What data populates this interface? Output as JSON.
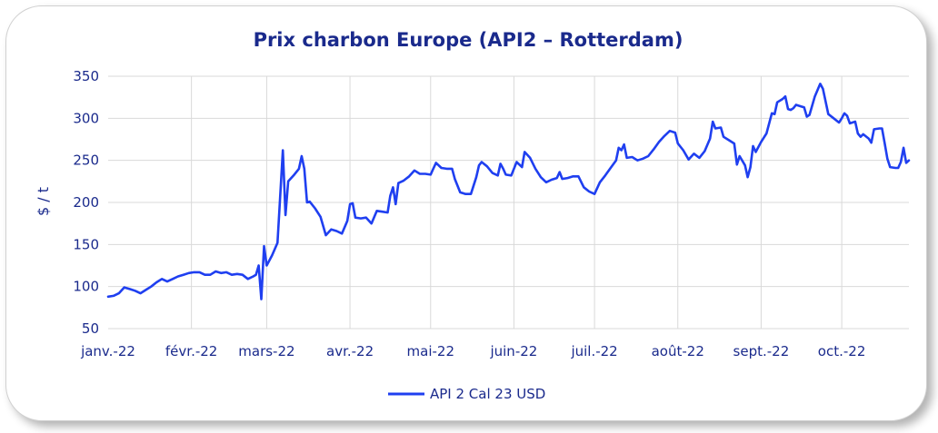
{
  "chart_data": {
    "type": "line",
    "title": "Prix charbon Europe (API2 – Rotterdam)",
    "xlabel": "",
    "ylabel": "$ / t",
    "ylim": [
      50,
      350
    ],
    "yticks": [
      50,
      100,
      150,
      200,
      250,
      300,
      350
    ],
    "xlim": [
      "2022-01-01",
      "2022-10-26"
    ],
    "xticks": [
      {
        "label": "janv.-22",
        "date": "2022-01-01"
      },
      {
        "label": "févr.-22",
        "date": "2022-02-01"
      },
      {
        "label": "mars-22",
        "date": "2022-03-01"
      },
      {
        "label": "avr.-22",
        "date": "2022-04-01"
      },
      {
        "label": "mai-22",
        "date": "2022-05-01"
      },
      {
        "label": "juin-22",
        "date": "2022-06-01"
      },
      {
        "label": "juil.-22",
        "date": "2022-07-01"
      },
      {
        "label": "août-22",
        "date": "2022-08-01"
      },
      {
        "label": "sept.-22",
        "date": "2022-09-01"
      },
      {
        "label": "oct.-22",
        "date": "2022-10-01"
      }
    ],
    "grid": true,
    "legend_position": "bottom",
    "series": [
      {
        "name": "API 2 Cal 23 USD",
        "color": "#1f3ff0",
        "points": [
          [
            "2022-01-01",
            88
          ],
          [
            "2022-01-03",
            89
          ],
          [
            "2022-01-05",
            92
          ],
          [
            "2022-01-07",
            99
          ],
          [
            "2022-01-09",
            97
          ],
          [
            "2022-01-11",
            95
          ],
          [
            "2022-01-13",
            92
          ],
          [
            "2022-01-15",
            96
          ],
          [
            "2022-01-17",
            100
          ],
          [
            "2022-01-19",
            105
          ],
          [
            "2022-01-21",
            109
          ],
          [
            "2022-01-23",
            106
          ],
          [
            "2022-01-25",
            109
          ],
          [
            "2022-01-27",
            112
          ],
          [
            "2022-01-29",
            114
          ],
          [
            "2022-01-31",
            116
          ],
          [
            "2022-02-02",
            117
          ],
          [
            "2022-02-04",
            117
          ],
          [
            "2022-02-06",
            114
          ],
          [
            "2022-02-08",
            114
          ],
          [
            "2022-02-10",
            118
          ],
          [
            "2022-02-12",
            116
          ],
          [
            "2022-02-14",
            117
          ],
          [
            "2022-02-16",
            114
          ],
          [
            "2022-02-18",
            115
          ],
          [
            "2022-02-20",
            114
          ],
          [
            "2022-02-22",
            109
          ],
          [
            "2022-02-24",
            112
          ],
          [
            "2022-02-25",
            114
          ],
          [
            "2022-02-26",
            125
          ],
          [
            "2022-02-27",
            85
          ],
          [
            "2022-02-28",
            148
          ],
          [
            "2022-03-01",
            125
          ],
          [
            "2022-03-03",
            137
          ],
          [
            "2022-03-05",
            152
          ],
          [
            "2022-03-07",
            262
          ],
          [
            "2022-03-08",
            185
          ],
          [
            "2022-03-09",
            225
          ],
          [
            "2022-03-11",
            232
          ],
          [
            "2022-03-13",
            240
          ],
          [
            "2022-03-14",
            255
          ],
          [
            "2022-03-15",
            240
          ],
          [
            "2022-03-16",
            200
          ],
          [
            "2022-03-17",
            201
          ],
          [
            "2022-03-19",
            193
          ],
          [
            "2022-03-21",
            183
          ],
          [
            "2022-03-23",
            161
          ],
          [
            "2022-03-25",
            168
          ],
          [
            "2022-03-27",
            166
          ],
          [
            "2022-03-29",
            163
          ],
          [
            "2022-03-31",
            178
          ],
          [
            "2022-04-01",
            198
          ],
          [
            "2022-04-02",
            199
          ],
          [
            "2022-04-03",
            182
          ],
          [
            "2022-04-05",
            181
          ],
          [
            "2022-04-07",
            182
          ],
          [
            "2022-04-09",
            175
          ],
          [
            "2022-04-11",
            190
          ],
          [
            "2022-04-13",
            189
          ],
          [
            "2022-04-15",
            188
          ],
          [
            "2022-04-16",
            208
          ],
          [
            "2022-04-17",
            218
          ],
          [
            "2022-04-18",
            198
          ],
          [
            "2022-04-19",
            223
          ],
          [
            "2022-04-21",
            226
          ],
          [
            "2022-04-23",
            231
          ],
          [
            "2022-04-25",
            238
          ],
          [
            "2022-04-27",
            234
          ],
          [
            "2022-04-29",
            234
          ],
          [
            "2022-05-01",
            233
          ],
          [
            "2022-05-02",
            240
          ],
          [
            "2022-05-03",
            247
          ],
          [
            "2022-05-05",
            241
          ],
          [
            "2022-05-07",
            240
          ],
          [
            "2022-05-09",
            240
          ],
          [
            "2022-05-10",
            228
          ],
          [
            "2022-05-12",
            212
          ],
          [
            "2022-05-14",
            210
          ],
          [
            "2022-05-16",
            210
          ],
          [
            "2022-05-18",
            230
          ],
          [
            "2022-05-19",
            244
          ],
          [
            "2022-05-20",
            248
          ],
          [
            "2022-05-22",
            243
          ],
          [
            "2022-05-24",
            235
          ],
          [
            "2022-05-26",
            232
          ],
          [
            "2022-05-27",
            246
          ],
          [
            "2022-05-28",
            240
          ],
          [
            "2022-05-29",
            233
          ],
          [
            "2022-05-31",
            232
          ],
          [
            "2022-06-02",
            248
          ],
          [
            "2022-06-04",
            242
          ],
          [
            "2022-06-05",
            260
          ],
          [
            "2022-06-07",
            253
          ],
          [
            "2022-06-09",
            240
          ],
          [
            "2022-06-11",
            230
          ],
          [
            "2022-06-13",
            224
          ],
          [
            "2022-06-15",
            227
          ],
          [
            "2022-06-17",
            229
          ],
          [
            "2022-06-18",
            236
          ],
          [
            "2022-06-19",
            228
          ],
          [
            "2022-06-21",
            229
          ],
          [
            "2022-06-23",
            231
          ],
          [
            "2022-06-25",
            231
          ],
          [
            "2022-06-27",
            218
          ],
          [
            "2022-06-29",
            213
          ],
          [
            "2022-07-01",
            210
          ],
          [
            "2022-07-03",
            224
          ],
          [
            "2022-07-05",
            232
          ],
          [
            "2022-07-07",
            241
          ],
          [
            "2022-07-09",
            250
          ],
          [
            "2022-07-10",
            265
          ],
          [
            "2022-07-11",
            262
          ],
          [
            "2022-07-12",
            269
          ],
          [
            "2022-07-13",
            253
          ],
          [
            "2022-07-15",
            254
          ],
          [
            "2022-07-17",
            250
          ],
          [
            "2022-07-19",
            252
          ],
          [
            "2022-07-21",
            255
          ],
          [
            "2022-07-23",
            263
          ],
          [
            "2022-07-25",
            272
          ],
          [
            "2022-07-27",
            279
          ],
          [
            "2022-07-29",
            285
          ],
          [
            "2022-07-31",
            283
          ],
          [
            "2022-08-01",
            270
          ],
          [
            "2022-08-03",
            262
          ],
          [
            "2022-08-05",
            251
          ],
          [
            "2022-08-07",
            258
          ],
          [
            "2022-08-09",
            253
          ],
          [
            "2022-08-11",
            261
          ],
          [
            "2022-08-13",
            276
          ],
          [
            "2022-08-14",
            296
          ],
          [
            "2022-08-15",
            288
          ],
          [
            "2022-08-17",
            289
          ],
          [
            "2022-08-18",
            278
          ],
          [
            "2022-08-20",
            274
          ],
          [
            "2022-08-22",
            270
          ],
          [
            "2022-08-23",
            245
          ],
          [
            "2022-08-24",
            255
          ],
          [
            "2022-08-26",
            244
          ],
          [
            "2022-08-27",
            230
          ],
          [
            "2022-08-28",
            242
          ],
          [
            "2022-08-29",
            267
          ],
          [
            "2022-08-30",
            260
          ],
          [
            "2022-09-01",
            272
          ],
          [
            "2022-09-03",
            282
          ],
          [
            "2022-09-05",
            306
          ],
          [
            "2022-09-06",
            305
          ],
          [
            "2022-09-07",
            319
          ],
          [
            "2022-09-09",
            323
          ],
          [
            "2022-09-10",
            326
          ],
          [
            "2022-09-11",
            311
          ],
          [
            "2022-09-12",
            310
          ],
          [
            "2022-09-13",
            312
          ],
          [
            "2022-09-14",
            316
          ],
          [
            "2022-09-16",
            314
          ],
          [
            "2022-09-17",
            313
          ],
          [
            "2022-09-18",
            302
          ],
          [
            "2022-09-19",
            304
          ],
          [
            "2022-09-21",
            326
          ],
          [
            "2022-09-23",
            341
          ],
          [
            "2022-09-24",
            335
          ],
          [
            "2022-09-26",
            305
          ],
          [
            "2022-09-28",
            300
          ],
          [
            "2022-09-30",
            295
          ],
          [
            "2022-10-01",
            300
          ],
          [
            "2022-10-02",
            306
          ],
          [
            "2022-10-03",
            303
          ],
          [
            "2022-10-04",
            294
          ],
          [
            "2022-10-06",
            296
          ],
          [
            "2022-10-07",
            282
          ],
          [
            "2022-10-08",
            278
          ],
          [
            "2022-10-09",
            281
          ],
          [
            "2022-10-11",
            276
          ],
          [
            "2022-10-12",
            271
          ],
          [
            "2022-10-13",
            287
          ],
          [
            "2022-10-15",
            288
          ],
          [
            "2022-10-16",
            288
          ],
          [
            "2022-10-17",
            270
          ],
          [
            "2022-10-18",
            252
          ],
          [
            "2022-10-19",
            242
          ],
          [
            "2022-10-21",
            241
          ],
          [
            "2022-10-22",
            241
          ],
          [
            "2022-10-23",
            248
          ],
          [
            "2022-10-24",
            265
          ],
          [
            "2022-10-25",
            247
          ],
          [
            "2022-10-26",
            250
          ]
        ]
      }
    ]
  }
}
